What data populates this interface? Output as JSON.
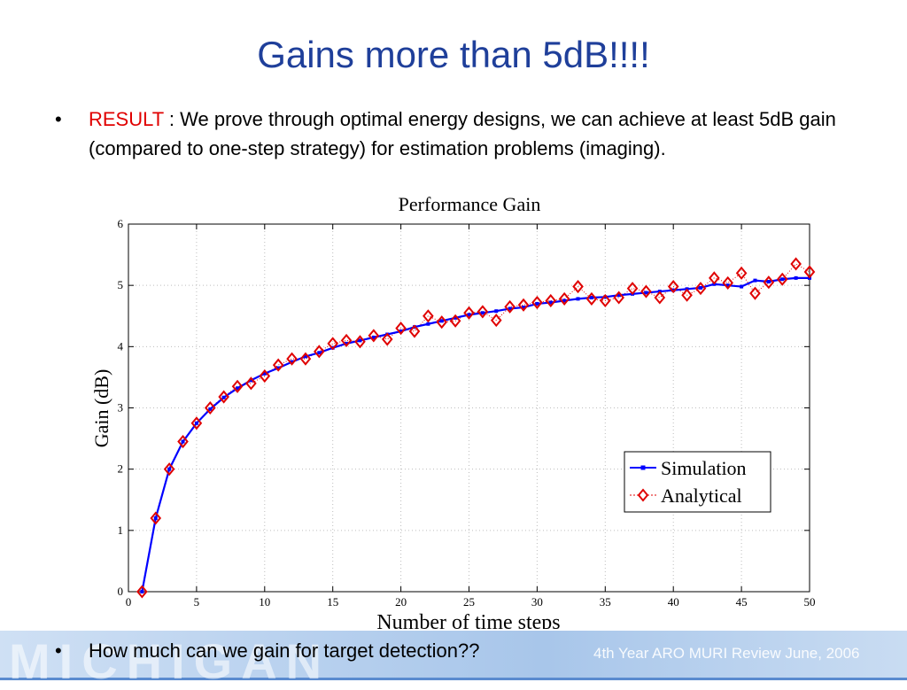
{
  "slide": {
    "title": "Gains more than 5dB!!!!",
    "bullet_char": "•",
    "bullet1_highlight": "RESULT",
    "bullet1_text": " : We prove through optimal energy designs, we can achieve at least 5dB gain (compared to one-step strategy) for estimation problems (imaging).",
    "bullet2_text": "How much can we gain for target detection??",
    "watermark": "MICHIGAN",
    "footer_note": "4th Year ARO MURI Review June, 2006"
  },
  "colors": {
    "title": "#1f3f9a",
    "highlight": "#e00000",
    "simulation": "#0000ff",
    "analytical": "#e00000"
  },
  "chart_data": {
    "type": "line",
    "title": "Performance Gain",
    "xlabel": "Number of time steps",
    "ylabel": "Gain (dB)",
    "xlim": [
      0,
      50
    ],
    "ylim": [
      0,
      6
    ],
    "xticks": [
      0,
      5,
      10,
      15,
      20,
      25,
      30,
      35,
      40,
      45,
      50
    ],
    "yticks": [
      0,
      1,
      2,
      3,
      4,
      5,
      6
    ],
    "grid": true,
    "legend_position": "bottom-right",
    "x": [
      1,
      2,
      3,
      4,
      5,
      6,
      7,
      8,
      9,
      10,
      11,
      12,
      13,
      14,
      15,
      16,
      17,
      18,
      19,
      20,
      21,
      22,
      23,
      24,
      25,
      26,
      27,
      28,
      29,
      30,
      31,
      32,
      33,
      34,
      35,
      36,
      37,
      38,
      39,
      40,
      41,
      42,
      43,
      44,
      45,
      46,
      47,
      48,
      49,
      50
    ],
    "series": [
      {
        "name": "Simulation",
        "marker": "square",
        "values": [
          0,
          1.2,
          2.0,
          2.45,
          2.75,
          2.98,
          3.17,
          3.32,
          3.45,
          3.56,
          3.65,
          3.75,
          3.84,
          3.9,
          3.98,
          4.05,
          4.1,
          4.15,
          4.2,
          4.25,
          4.32,
          4.37,
          4.42,
          4.47,
          4.52,
          4.55,
          4.58,
          4.62,
          4.64,
          4.7,
          4.72,
          4.75,
          4.78,
          4.8,
          4.81,
          4.84,
          4.86,
          4.88,
          4.9,
          4.92,
          4.94,
          4.96,
          5.02,
          5.0,
          4.98,
          5.08,
          5.06,
          5.1,
          5.12,
          5.12
        ]
      },
      {
        "name": "Analytical",
        "marker": "diamond",
        "values": [
          0,
          1.2,
          2.0,
          2.45,
          2.75,
          3.0,
          3.18,
          3.35,
          3.4,
          3.52,
          3.7,
          3.8,
          3.8,
          3.92,
          4.05,
          4.1,
          4.08,
          4.18,
          4.12,
          4.3,
          4.25,
          4.5,
          4.4,
          4.42,
          4.55,
          4.57,
          4.43,
          4.65,
          4.68,
          4.72,
          4.75,
          4.78,
          4.98,
          4.78,
          4.75,
          4.8,
          4.95,
          4.9,
          4.8,
          4.98,
          4.84,
          4.95,
          5.12,
          5.04,
          5.2,
          4.87,
          5.05,
          5.1,
          5.35,
          5.22
        ]
      }
    ]
  }
}
